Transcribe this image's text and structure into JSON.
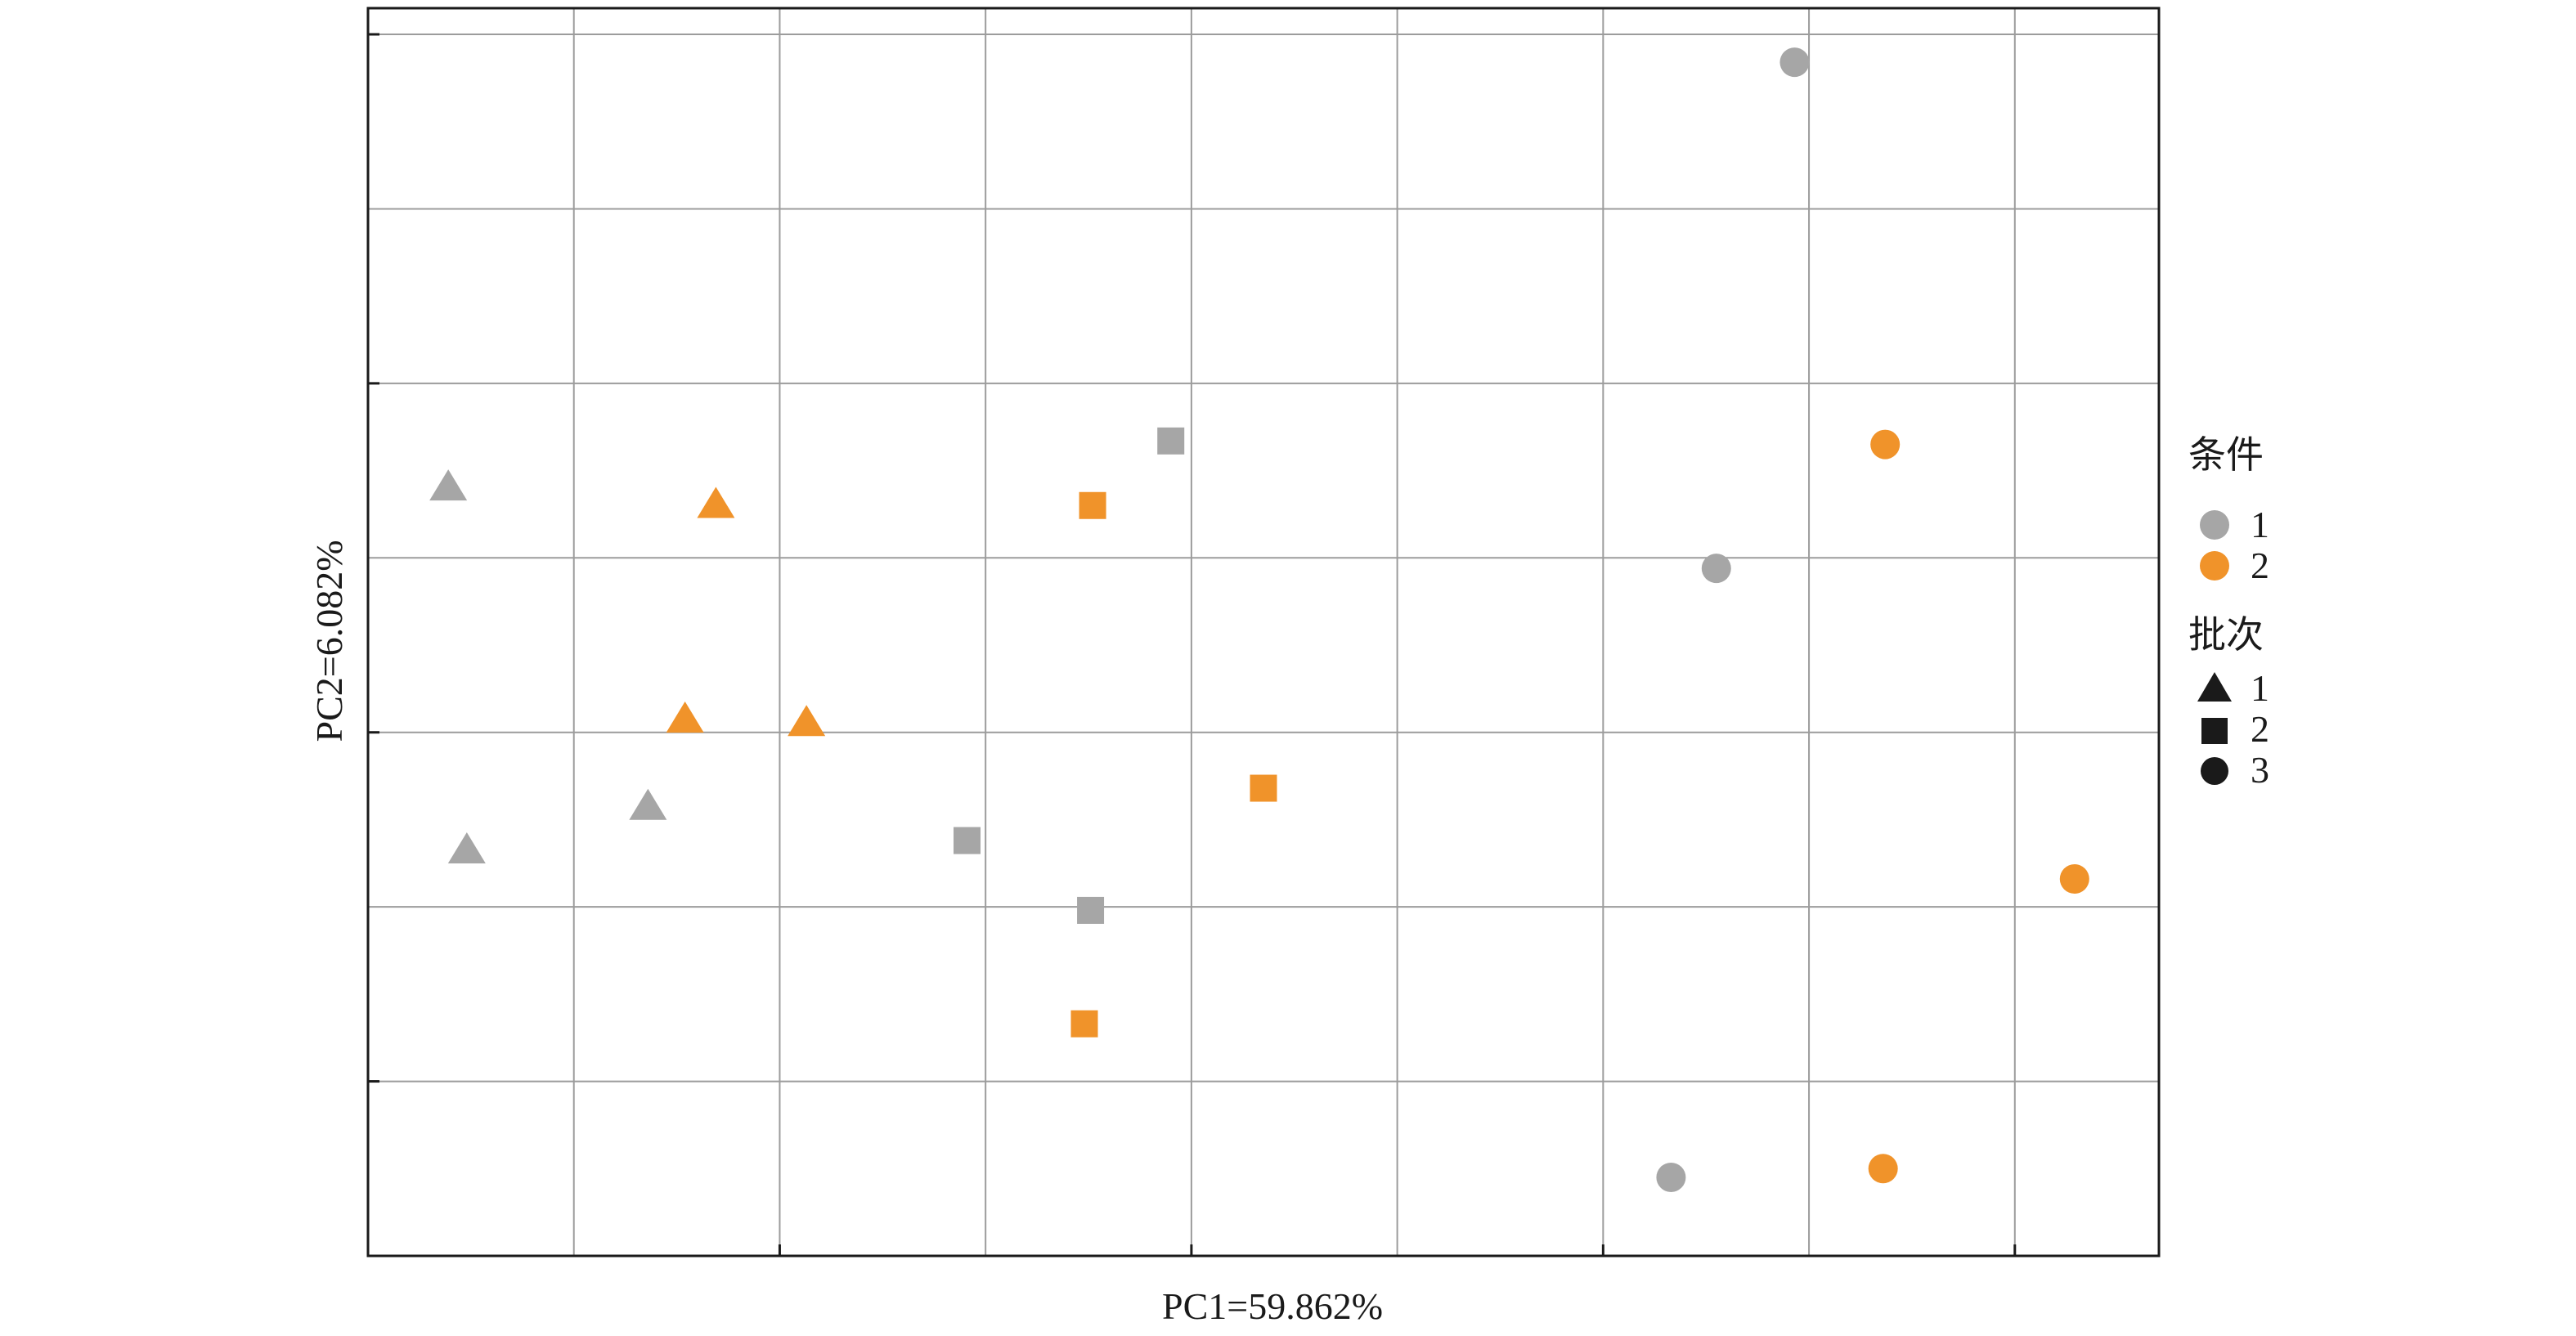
{
  "chart_data": {
    "type": "scatter",
    "title": "",
    "xlabel": "PC1=59.862%",
    "ylabel": "PC2=6.082%",
    "xlim": [
      0,
      8.7
    ],
    "ylim": [
      -7.15,
      0
    ],
    "x_gridlines": [
      1,
      2,
      3,
      4,
      5,
      6,
      7,
      8
    ],
    "y_gridlines": [
      -0.15,
      -1.15,
      -2.15,
      -3.15,
      -4.15,
      -5.15,
      -6.15
    ],
    "y_ticks": [
      -0.15,
      -2.15,
      -4.15,
      -6.15
    ],
    "x_ticks": [
      2,
      4,
      6,
      8
    ],
    "tick_labels_shown": false,
    "grid": true,
    "legend_position": "right",
    "legend": {
      "color_title": "条件",
      "color_entries": [
        {
          "label": "1",
          "color": "#a6a6a6"
        },
        {
          "label": "2",
          "color": "#f0932a"
        }
      ],
      "shape_title": "批次",
      "shape_entries": [
        {
          "label": "1",
          "shape": "triangle"
        },
        {
          "label": "2",
          "shape": "square"
        },
        {
          "label": "3",
          "shape": "circle"
        }
      ],
      "shape_color": "#1a1a1a"
    },
    "colors": {
      "1": "#a6a6a6",
      "2": "#f0932a"
    },
    "points": [
      {
        "x": 0.39,
        "y": -2.75,
        "condition": "1",
        "batch": "1"
      },
      {
        "x": 0.48,
        "y": -4.83,
        "condition": "1",
        "batch": "1"
      },
      {
        "x": 1.36,
        "y": -4.58,
        "condition": "1",
        "batch": "1"
      },
      {
        "x": 1.69,
        "y": -2.85,
        "condition": "2",
        "batch": "1"
      },
      {
        "x": 1.54,
        "y": -4.08,
        "condition": "2",
        "batch": "1"
      },
      {
        "x": 2.13,
        "y": -4.1,
        "condition": "2",
        "batch": "1"
      },
      {
        "x": 3.9,
        "y": -2.48,
        "condition": "1",
        "batch": "2"
      },
      {
        "x": 2.91,
        "y": -4.77,
        "condition": "1",
        "batch": "2"
      },
      {
        "x": 3.51,
        "y": -5.17,
        "condition": "1",
        "batch": "2"
      },
      {
        "x": 3.52,
        "y": -2.85,
        "condition": "2",
        "batch": "2"
      },
      {
        "x": 4.35,
        "y": -4.47,
        "condition": "2",
        "batch": "2"
      },
      {
        "x": 3.48,
        "y": -5.82,
        "condition": "2",
        "batch": "2"
      },
      {
        "x": 6.93,
        "y": -0.31,
        "condition": "1",
        "batch": "3"
      },
      {
        "x": 6.55,
        "y": -3.21,
        "condition": "1",
        "batch": "3"
      },
      {
        "x": 6.33,
        "y": -6.7,
        "condition": "1",
        "batch": "3"
      },
      {
        "x": 7.37,
        "y": -2.5,
        "condition": "2",
        "batch": "3"
      },
      {
        "x": 8.29,
        "y": -4.99,
        "condition": "2",
        "batch": "3"
      },
      {
        "x": 7.36,
        "y": -6.65,
        "condition": "2",
        "batch": "3"
      }
    ]
  }
}
